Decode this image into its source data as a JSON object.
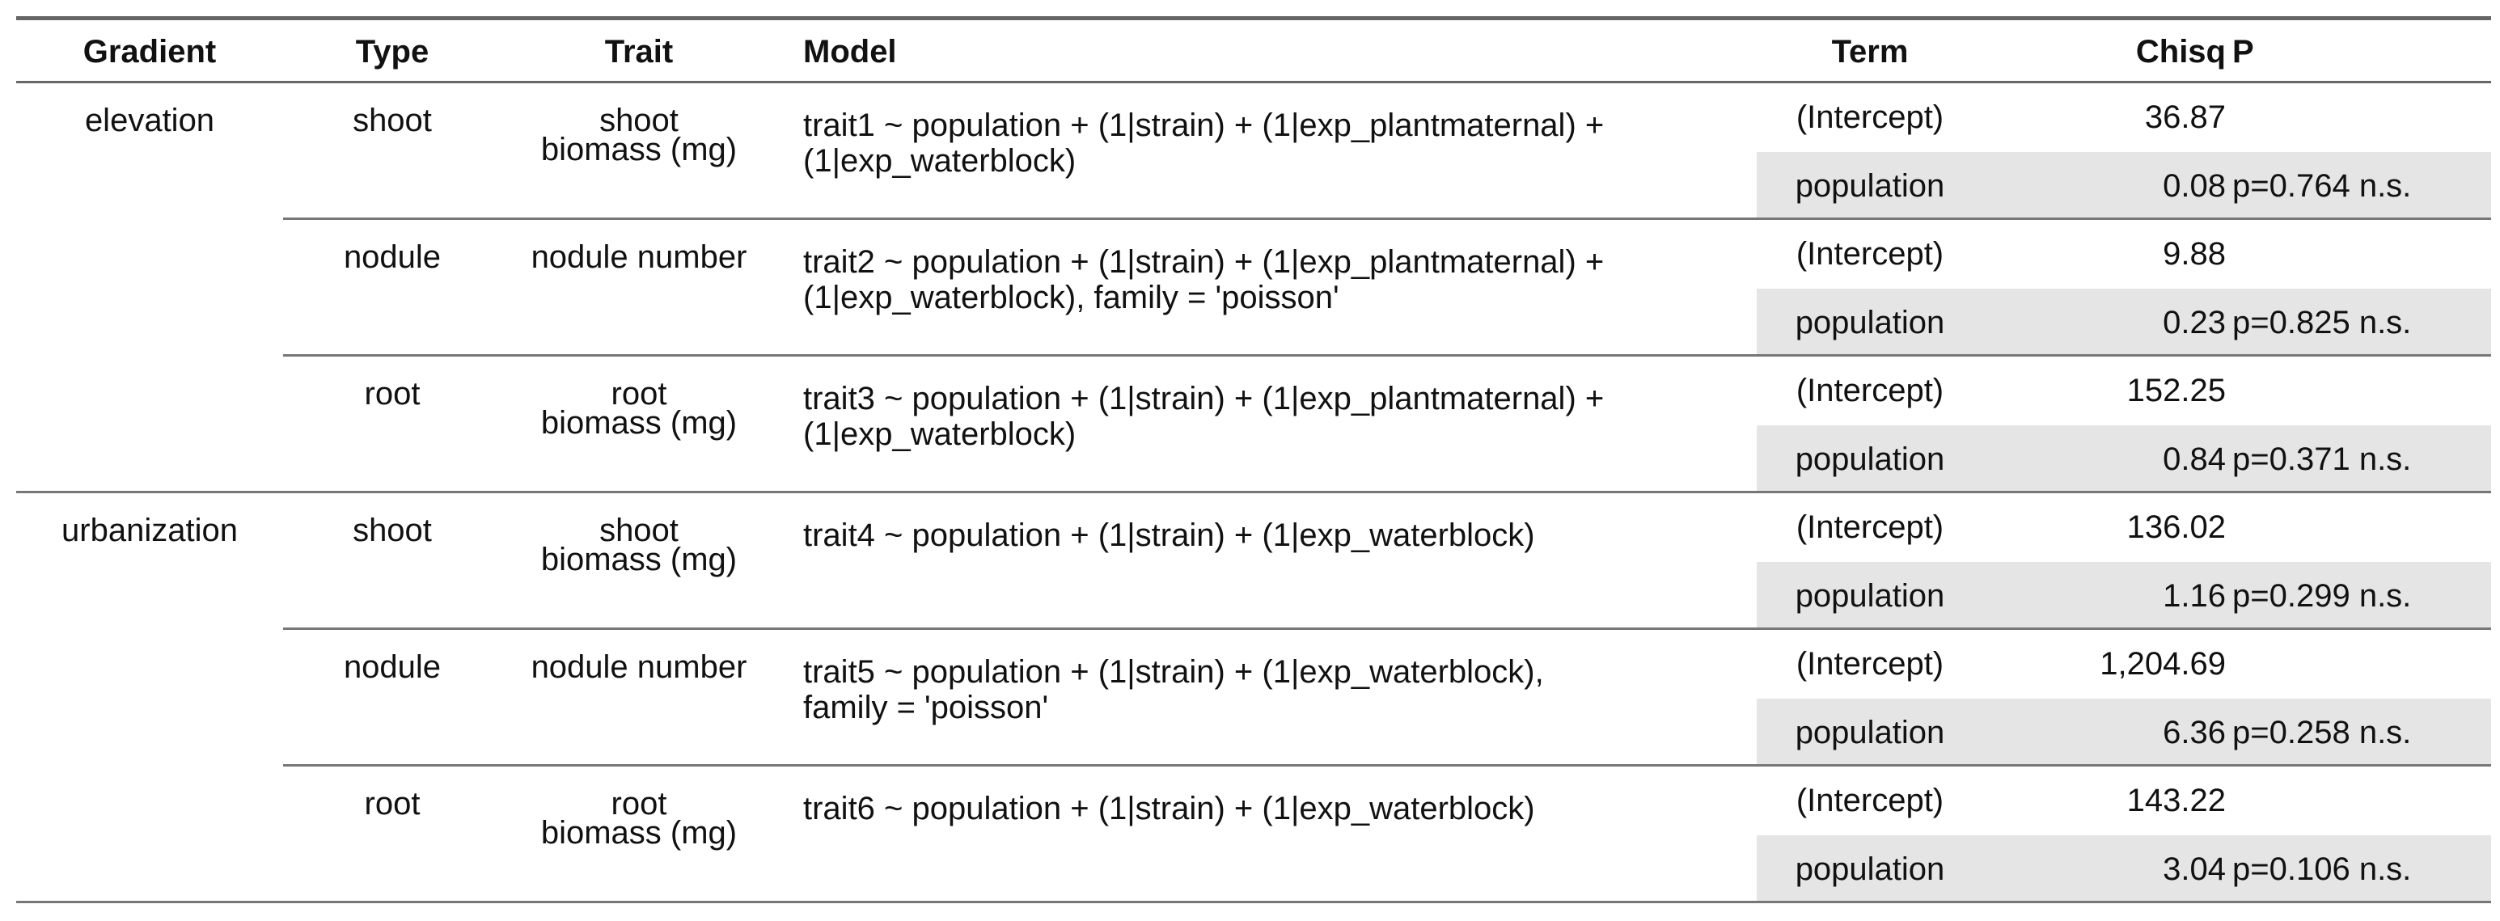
{
  "headers": {
    "gradient": "Gradient",
    "type": "Type",
    "trait": "Trait",
    "model": "Model",
    "term": "Term",
    "chisq": "Chisq",
    "p": "P"
  },
  "groups": [
    {
      "gradient": "elevation",
      "models": [
        {
          "type": "shoot",
          "trait_line1": "shoot",
          "trait_line2": "biomass (mg)",
          "model_line1": "trait1 ~ population + (1|strain) + (1|exp_plantmaternal) +",
          "model_line2": "(1|exp_waterblock)",
          "rows": [
            {
              "term": "(Intercept)",
              "chisq": "36.87",
              "p": ""
            },
            {
              "term": "population",
              "chisq": "0.08",
              "p": "p=0.764 n.s."
            }
          ]
        },
        {
          "type": "nodule",
          "trait_line1": "nodule number",
          "trait_line2": "",
          "model_line1": "trait2 ~ population + (1|strain) + (1|exp_plantmaternal) +",
          "model_line2": "(1|exp_waterblock), family = 'poisson'",
          "rows": [
            {
              "term": "(Intercept)",
              "chisq": "9.88",
              "p": ""
            },
            {
              "term": "population",
              "chisq": "0.23",
              "p": "p=0.825 n.s."
            }
          ]
        },
        {
          "type": "root",
          "trait_line1": "root",
          "trait_line2": "biomass (mg)",
          "model_line1": "trait3 ~ population + (1|strain) + (1|exp_plantmaternal) +",
          "model_line2": "(1|exp_waterblock)",
          "rows": [
            {
              "term": "(Intercept)",
              "chisq": "152.25",
              "p": ""
            },
            {
              "term": "population",
              "chisq": "0.84",
              "p": "p=0.371 n.s."
            }
          ]
        }
      ]
    },
    {
      "gradient": "urbanization",
      "models": [
        {
          "type": "shoot",
          "trait_line1": "shoot",
          "trait_line2": "biomass (mg)",
          "model_line1": "trait4 ~ population + (1|strain) + (1|exp_waterblock)",
          "model_line2": "",
          "rows": [
            {
              "term": "(Intercept)",
              "chisq": "136.02",
              "p": ""
            },
            {
              "term": "population",
              "chisq": "1.16",
              "p": "p=0.299 n.s."
            }
          ]
        },
        {
          "type": "nodule",
          "trait_line1": "nodule number",
          "trait_line2": "",
          "model_line1": "trait5 ~ population + (1|strain) + (1|exp_waterblock),",
          "model_line2": "family = 'poisson'",
          "rows": [
            {
              "term": "(Intercept)",
              "chisq": "1,204.69",
              "p": ""
            },
            {
              "term": "population",
              "chisq": "6.36",
              "p": "p=0.258 n.s."
            }
          ]
        },
        {
          "type": "root",
          "trait_line1": "root",
          "trait_line2": "biomass (mg)",
          "model_line1": "trait6 ~ population + (1|strain) + (1|exp_waterblock)",
          "model_line2": "",
          "rows": [
            {
              "term": "(Intercept)",
              "chisq": "143.22",
              "p": ""
            },
            {
              "term": "population",
              "chisq": "3.04",
              "p": "p=0.106 n.s."
            }
          ]
        }
      ]
    }
  ]
}
